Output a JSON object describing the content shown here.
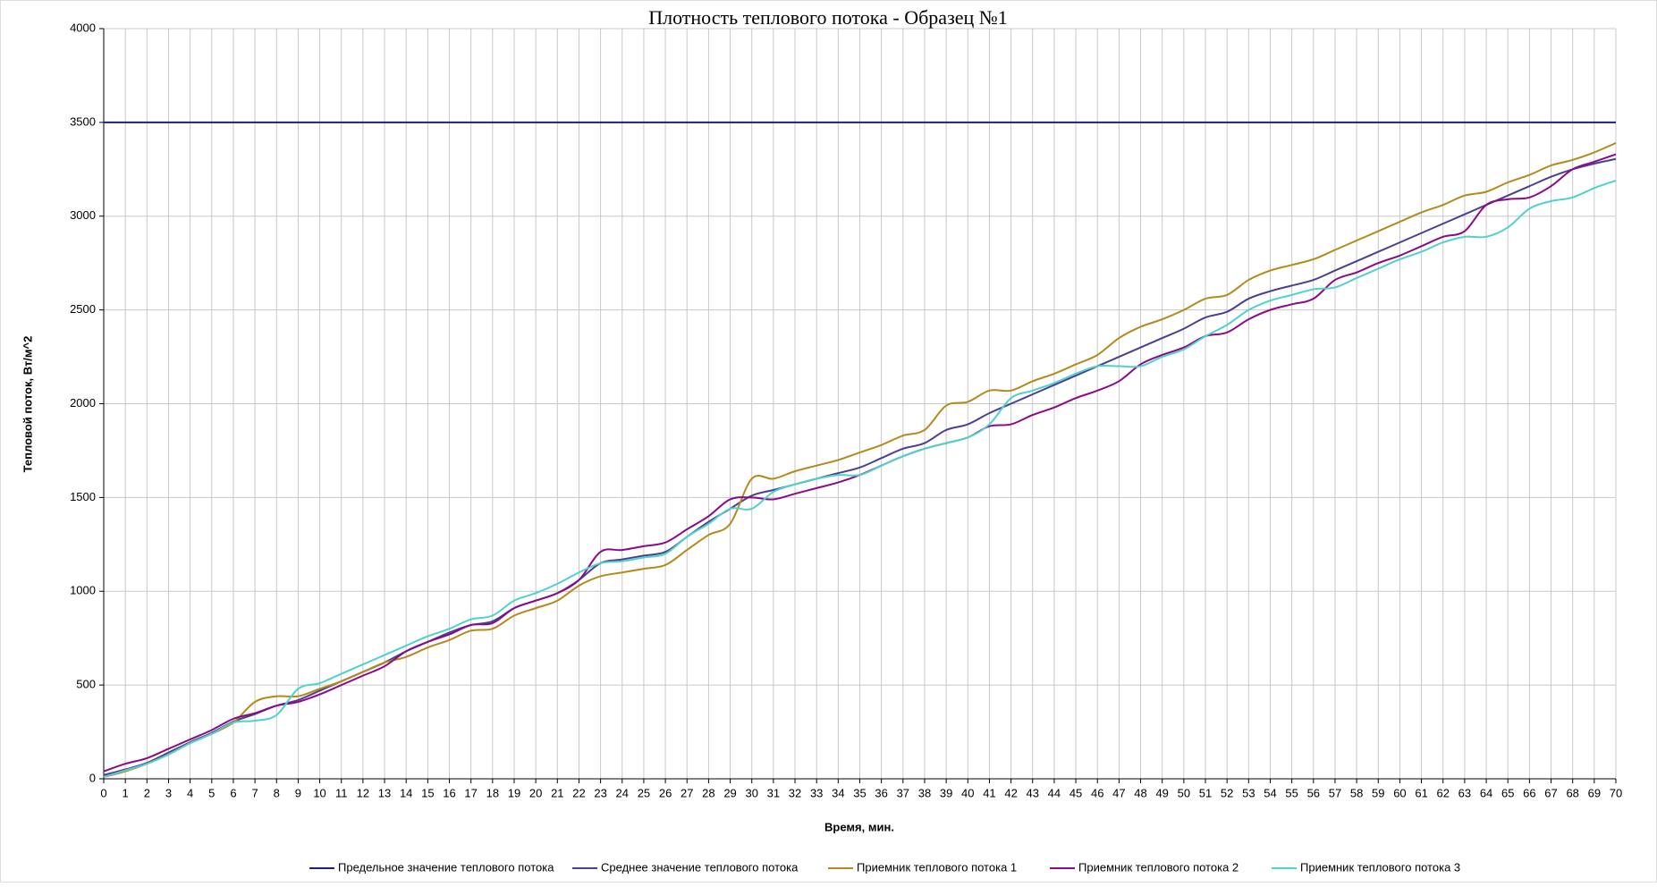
{
  "chart_data": {
    "type": "line",
    "title": "Плотность теплового потока - Образец №1",
    "xlabel": "Время, мин.",
    "ylabel": "Тепловой поток, Вт/м^2",
    "x": [
      0,
      1,
      2,
      3,
      4,
      5,
      6,
      7,
      8,
      9,
      10,
      11,
      12,
      13,
      14,
      15,
      16,
      17,
      18,
      19,
      20,
      21,
      22,
      23,
      24,
      25,
      26,
      27,
      28,
      29,
      30,
      31,
      32,
      33,
      34,
      35,
      36,
      37,
      38,
      39,
      40,
      41,
      42,
      43,
      44,
      45,
      46,
      47,
      48,
      49,
      50,
      51,
      52,
      53,
      54,
      55,
      56,
      57,
      58,
      59,
      60,
      61,
      62,
      63,
      64,
      65,
      66,
      67,
      68,
      69,
      70
    ],
    "xlim": [
      0,
      70
    ],
    "xticks": [
      0,
      1,
      2,
      3,
      4,
      5,
      6,
      7,
      8,
      9,
      10,
      11,
      12,
      13,
      14,
      15,
      16,
      17,
      18,
      19,
      20,
      21,
      22,
      23,
      24,
      25,
      26,
      27,
      28,
      29,
      30,
      31,
      32,
      33,
      34,
      35,
      36,
      37,
      38,
      39,
      40,
      41,
      42,
      43,
      44,
      45,
      46,
      47,
      48,
      49,
      50,
      51,
      52,
      53,
      54,
      55,
      56,
      57,
      58,
      59,
      60,
      61,
      62,
      63,
      64,
      65,
      66,
      67,
      68,
      69,
      70
    ],
    "ylim": [
      0,
      4000
    ],
    "yticks": [
      0,
      500,
      1000,
      1500,
      2000,
      2500,
      3000,
      3500,
      4000
    ],
    "grid": true,
    "legend": "bottom",
    "series": [
      {
        "name": "Предельное значение теплового потока",
        "color": "#1f1f7a",
        "values": [
          3500,
          3500,
          3500,
          3500,
          3500,
          3500,
          3500,
          3500,
          3500,
          3500,
          3500,
          3500,
          3500,
          3500,
          3500,
          3500,
          3500,
          3500,
          3500,
          3500,
          3500,
          3500,
          3500,
          3500,
          3500,
          3500,
          3500,
          3500,
          3500,
          3500,
          3500,
          3500,
          3500,
          3500,
          3500,
          3500,
          3500,
          3500,
          3500,
          3500,
          3500,
          3500,
          3500,
          3500,
          3500,
          3500,
          3500,
          3500,
          3500,
          3500,
          3500,
          3500,
          3500,
          3500,
          3500,
          3500,
          3500,
          3500,
          3500,
          3500,
          3500,
          3500,
          3500,
          3500,
          3500,
          3500,
          3500,
          3500,
          3500,
          3500,
          3500
        ]
      },
      {
        "name": "Среднее значение теплового потока",
        "color": "#4b3f91",
        "values": [
          20,
          50,
          85,
          140,
          195,
          245,
          305,
          345,
          390,
          420,
          470,
          520,
          570,
          620,
          680,
          730,
          780,
          820,
          840,
          910,
          950,
          990,
          1060,
          1150,
          1170,
          1190,
          1210,
          1290,
          1370,
          1440,
          1510,
          1540,
          1570,
          1600,
          1630,
          1660,
          1710,
          1760,
          1790,
          1860,
          1890,
          1950,
          2000,
          2050,
          2100,
          2150,
          2200,
          2250,
          2300,
          2350,
          2400,
          2460,
          2490,
          2560,
          2600,
          2630,
          2660,
          2710,
          2760,
          2810,
          2860,
          2910,
          2960,
          3010,
          3060,
          3110,
          3160,
          3210,
          3250,
          3280,
          3305
        ]
      },
      {
        "name": "Приемник теплового потока 1",
        "color": "#b5891a",
        "values": [
          10,
          40,
          80,
          130,
          190,
          240,
          300,
          410,
          440,
          440,
          480,
          520,
          570,
          620,
          650,
          700,
          740,
          790,
          800,
          870,
          910,
          950,
          1030,
          1080,
          1100,
          1120,
          1140,
          1220,
          1300,
          1360,
          1600,
          1600,
          1640,
          1670,
          1700,
          1740,
          1780,
          1830,
          1860,
          1990,
          2010,
          2070,
          2070,
          2120,
          2160,
          2210,
          2260,
          2350,
          2410,
          2450,
          2500,
          2560,
          2580,
          2660,
          2710,
          2740,
          2770,
          2820,
          2870,
          2920,
          2970,
          3020,
          3060,
          3110,
          3130,
          3180,
          3220,
          3270,
          3300,
          3340,
          3390
        ]
      },
      {
        "name": "Приемник теплового потока 2",
        "color": "#8a0a8a",
        "values": [
          40,
          80,
          110,
          160,
          210,
          260,
          320,
          350,
          390,
          410,
          450,
          500,
          550,
          600,
          680,
          730,
          770,
          820,
          830,
          910,
          950,
          990,
          1060,
          1210,
          1220,
          1240,
          1260,
          1330,
          1400,
          1490,
          1500,
          1490,
          1520,
          1550,
          1580,
          1620,
          1670,
          1720,
          1760,
          1790,
          1820,
          1880,
          1890,
          1940,
          1980,
          2030,
          2070,
          2120,
          2210,
          2260,
          2300,
          2360,
          2380,
          2450,
          2500,
          2530,
          2560,
          2660,
          2700,
          2750,
          2790,
          2840,
          2890,
          2920,
          3060,
          3090,
          3100,
          3160,
          3250,
          3290,
          3330
        ]
      },
      {
        "name": "Приемник теплового потока 3",
        "color": "#4fd2cc",
        "values": [
          10,
          45,
          80,
          130,
          190,
          240,
          300,
          310,
          340,
          480,
          510,
          560,
          610,
          660,
          710,
          760,
          800,
          850,
          870,
          950,
          990,
          1040,
          1100,
          1150,
          1160,
          1180,
          1200,
          1290,
          1360,
          1440,
          1440,
          1530,
          1570,
          1600,
          1620,
          1620,
          1670,
          1720,
          1760,
          1790,
          1820,
          1890,
          2030,
          2070,
          2110,
          2160,
          2200,
          2200,
          2200,
          2250,
          2290,
          2360,
          2420,
          2500,
          2550,
          2580,
          2610,
          2620,
          2670,
          2720,
          2770,
          2810,
          2860,
          2890,
          2890,
          2940,
          3040,
          3080,
          3100,
          3150,
          3190
        ]
      }
    ]
  }
}
